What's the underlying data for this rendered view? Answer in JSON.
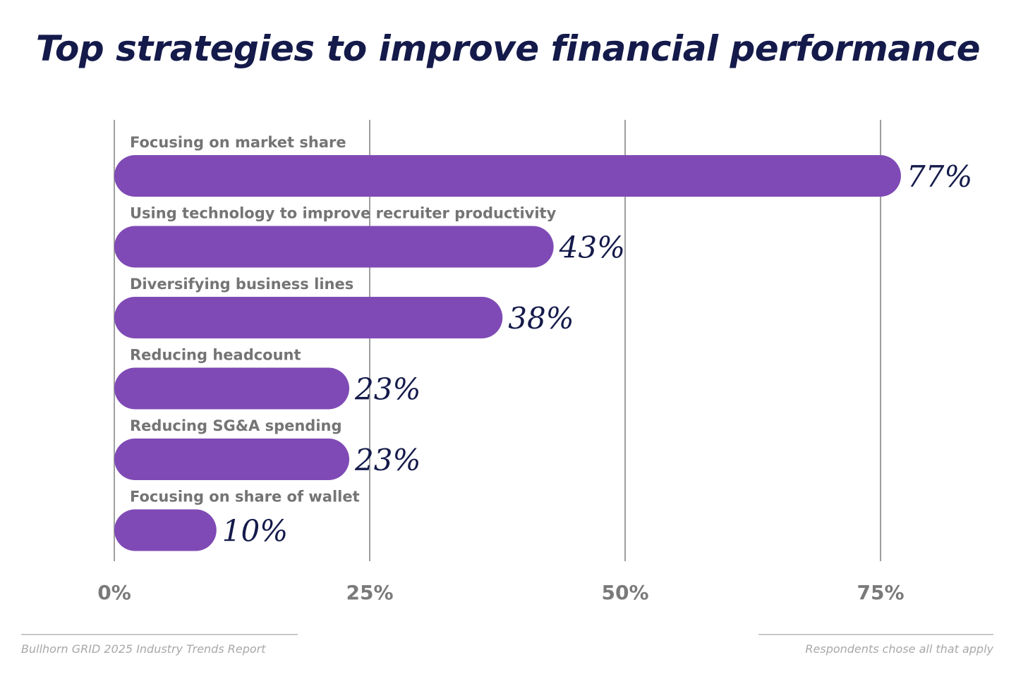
{
  "chart_data": {
    "type": "bar",
    "orientation": "horizontal",
    "title": "Top strategies to improve financial performance",
    "categories": [
      "Focusing on market share",
      "Using technology to improve recruiter productivity",
      "Diversifying business lines",
      "Reducing headcount",
      "Reducing SG&A spending",
      "Focusing on share of wallet"
    ],
    "values": [
      77,
      43,
      38,
      23,
      23,
      10
    ],
    "value_labels": [
      "77%",
      "43%",
      "38%",
      "23%",
      "23%",
      "10%"
    ],
    "x_ticks": [
      0,
      25,
      50,
      75
    ],
    "x_tick_labels": [
      "0%",
      "25%",
      "50%",
      "75%"
    ],
    "xlim": [
      0,
      75
    ],
    "grid": true,
    "colors": {
      "bar": "#7f4ab5",
      "title": "#141a4a",
      "value_label": "#141a4a",
      "category_label": "#747474",
      "tick_label": "#7a7a7a",
      "gridline": "#9e9e9e"
    }
  },
  "footer": {
    "source": "Bullhorn GRID 2025 Industry Trends Report",
    "note": "Respondents chose all that apply"
  }
}
